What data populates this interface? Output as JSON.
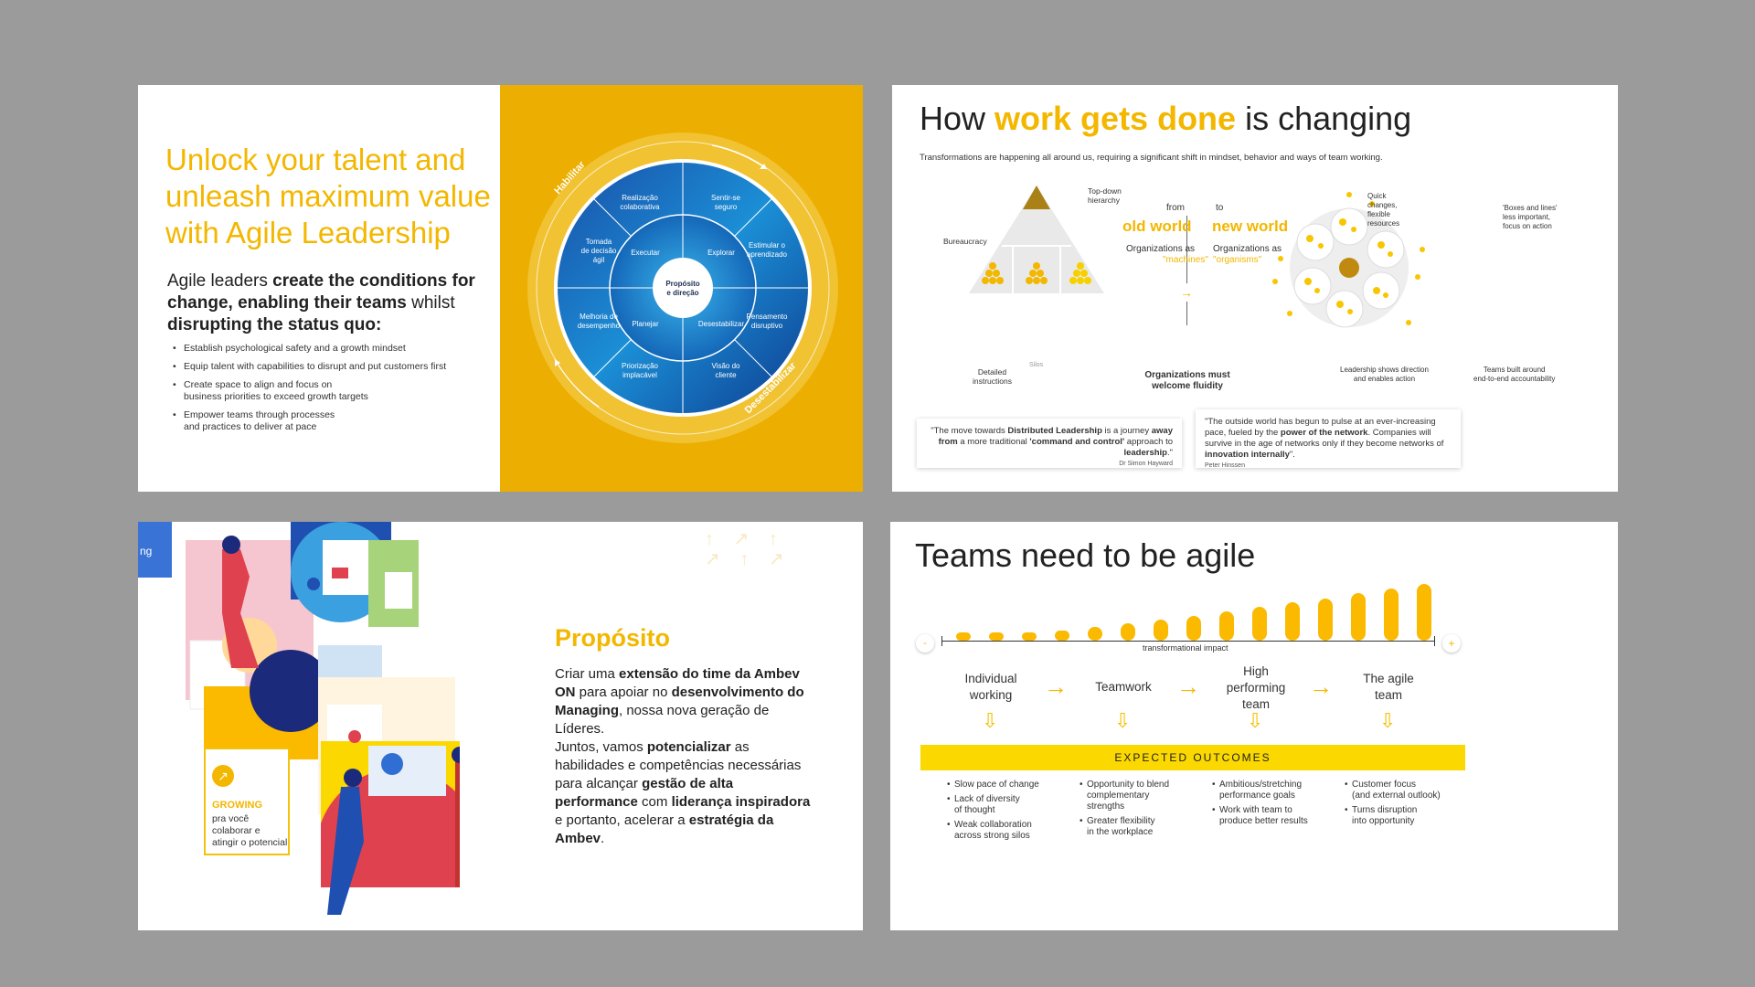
{
  "slide1": {
    "title": "Unlock your talent and unleash maximum value with Agile Leadership",
    "lead_part1": "Agile leaders ",
    "lead_bold1": "create the conditions for change, enabling their teams",
    "lead_part2": " whilst ",
    "lead_bold2": "disrupting the status quo:",
    "bullets": [
      "Establish psychological safety and a growth mindset",
      "Equip talent with capabilities to disrupt and put customers first",
      "Create space to align and focus on\nbusiness priorities to exceed growth targets",
      "Empower teams through processes\nand practices to deliver at pace"
    ],
    "wheel": {
      "center": [
        "Propósito",
        "e direção"
      ],
      "ring_left": "Habilitar",
      "ring_right": "Desestabilizar",
      "inner": [
        "Executar",
        "Explorar",
        "Planejar",
        "Desestabilizar"
      ],
      "outer": [
        [
          "Realização",
          "colaborativa"
        ],
        [
          "Sentir-se",
          "seguro"
        ],
        [
          "Estimular o",
          "aprendizado"
        ],
        [
          "Pensamento",
          "disruptivo"
        ],
        [
          "Visão do",
          "cliente"
        ],
        [
          "Priorização",
          "implacável"
        ],
        [
          "Melhoria de",
          "desempenho"
        ],
        [
          "Tomada",
          "de decisão",
          "ágil"
        ]
      ]
    }
  },
  "slide2": {
    "title_pre": "How ",
    "title_hl": "work gets done",
    "title_post": " is changing",
    "subtitle": "Transformations are happening all around us, requiring a significant shift in mindset, behavior and ways of team working.",
    "pyramid": {
      "top_label": "Top-down\nhierarchy",
      "bureaucracy": "Bureaucracy",
      "silos": "Silos",
      "detailed": "Detailed\ninstructions"
    },
    "from": "from",
    "to": "to",
    "old_world": "old world",
    "new_world": "new world",
    "orgs_as_left": "Organizations as",
    "machines": "\"machines\"",
    "orgs_as_right": "Organizations as",
    "organisms": "\"organisms\"",
    "fluidity": "Organizations must\nwelcome fluidity",
    "network": {
      "quick": "Quick\nchanges,\nflexible\nresources",
      "boxes": "'Boxes and lines'\nless important,\nfocus on action",
      "leadership": "Leadership shows direction\nand enables action",
      "teams": "Teams built around\nend-to-end accountability"
    },
    "quote1": {
      "pre": "\"The move towards ",
      "b1": "Distributed Leadership",
      "mid1": " is a journey ",
      "b2": "away from",
      "mid2": " a more traditional ",
      "b3": "'command and control'",
      "mid3": " approach to ",
      "b4": "leadership",
      "post": ".\"",
      "author": "Dr Simon Hayward"
    },
    "quote2": {
      "pre": "\"The outside world has begun to pulse at an ever-increasing pace, fueled by the ",
      "b1": "power of the network",
      "mid": ". Companies will survive in the age of networks only if they become networks of ",
      "b2": "innovation internally",
      "post": "\".",
      "author": "Peter Hinssen"
    }
  },
  "slide3": {
    "tab_text": "ng",
    "title": "Propósito",
    "p1_a": "Criar uma ",
    "p1_b": "extensão do time da Ambev ON",
    "p1_c": " para apoiar no ",
    "p1_d": "desenvolvimento do Managing",
    "p1_e": ", nossa nova geração de Líderes.",
    "p2_a": "Juntos, vamos ",
    "p2_b": "potencializar",
    "p2_c": " as habilidades e competências necessárias para alcançar ",
    "p2_d": "gestão de alta performance",
    "p2_e": " com ",
    "p2_f": "liderança inspiradora",
    "p2_g": " e portanto, acelerar a ",
    "p2_h": "estratégia da Ambev",
    "p2_i": ".",
    "growing_title": "GROWING",
    "growing_text": "pra você\ncolaborar e\natingir o potencial"
  },
  "slide4": {
    "title": "Teams need to be agile",
    "minus": "-",
    "plus": "+",
    "axis_label": "transformational impact",
    "stages": [
      "Individual\nworking",
      "Teamwork",
      "High\nperforming\nteam",
      "The agile\nteam"
    ],
    "outcomes_title": "EXPECTED OUTCOMES",
    "outcomes": [
      [
        "Slow pace of change",
        "Lack of diversity\nof thought",
        "Weak collaboration\nacross strong silos"
      ],
      [
        "Opportunity to blend\ncomplementary\nstrengths",
        "Greater flexibility\nin the workplace"
      ],
      [
        "Ambitious/stretching\nperformance goals",
        "Work with team to\nproduce better results"
      ],
      [
        "Customer focus\n(and external outlook)",
        "Turns disruption\ninto opportunity"
      ]
    ],
    "bars": [
      0.06,
      0.09,
      0.13,
      0.18,
      0.24,
      0.3,
      0.37,
      0.44,
      0.51,
      0.59,
      0.67,
      0.75,
      0.84,
      0.92,
      1.0
    ]
  }
}
